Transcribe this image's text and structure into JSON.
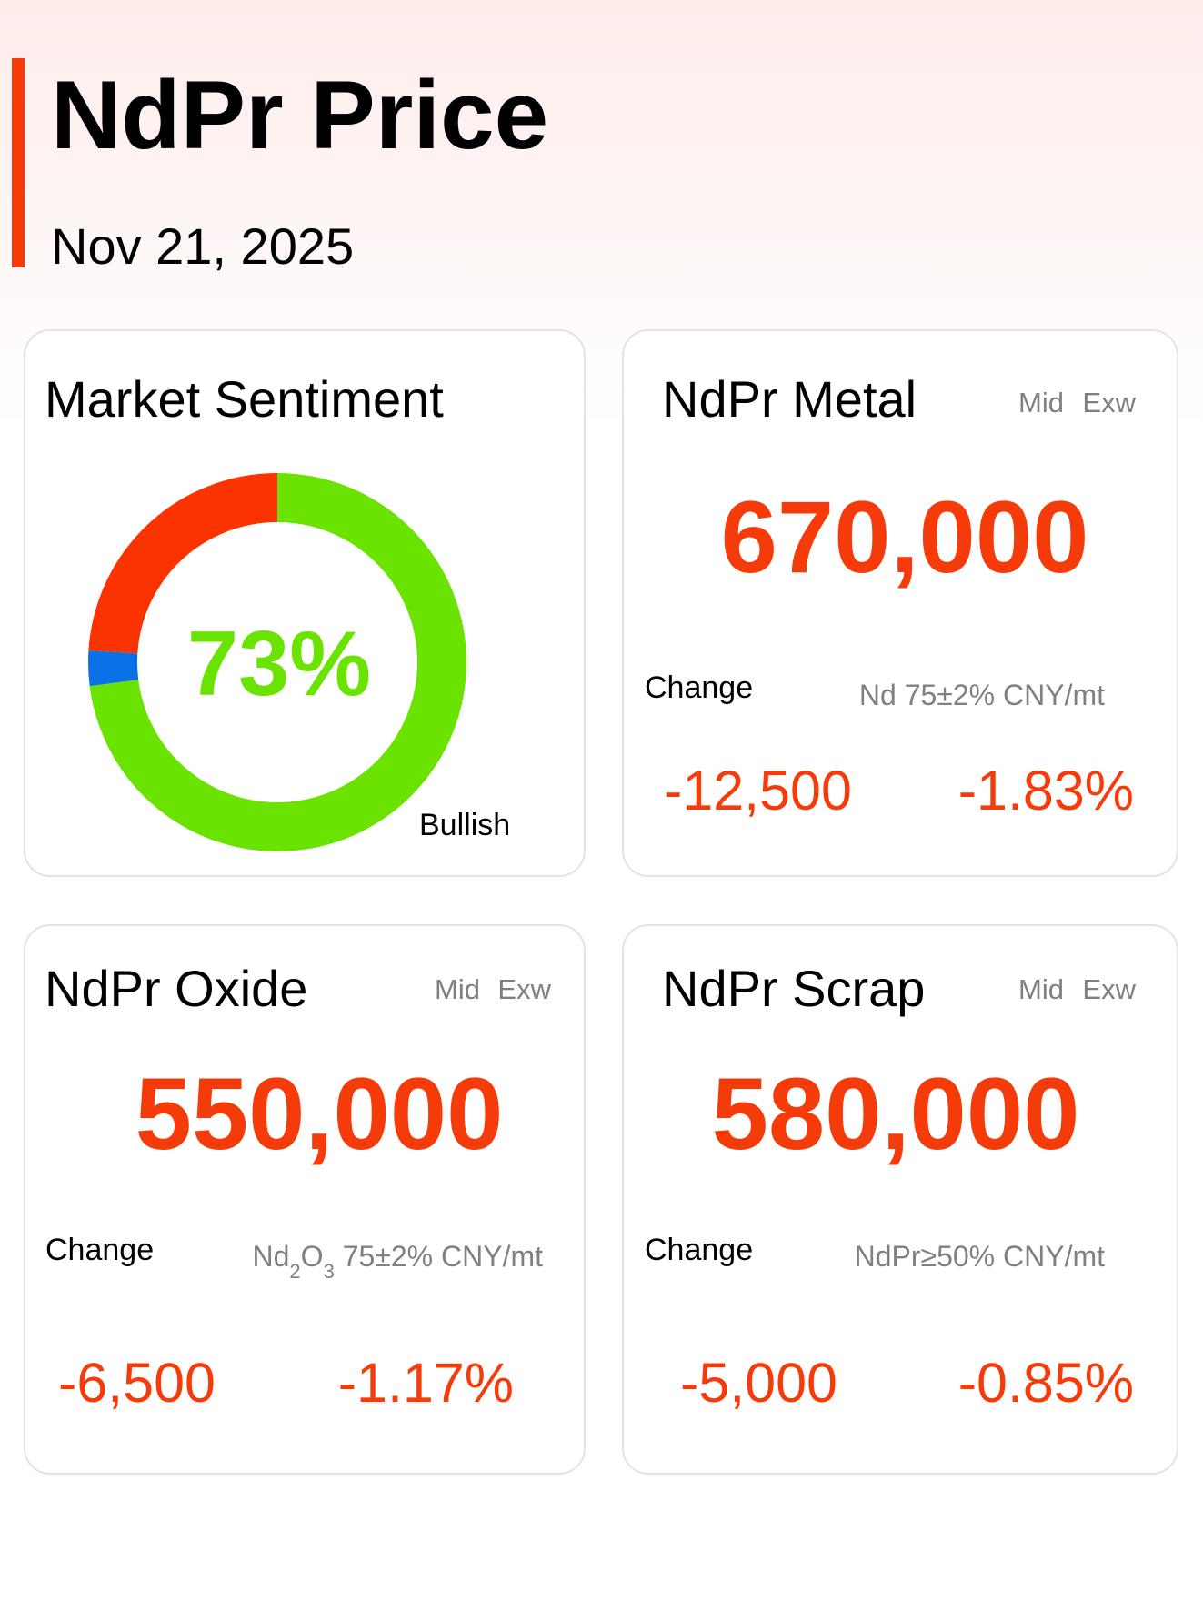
{
  "header": {
    "title": "NdPr Price",
    "date": "Nov 21, 2025"
  },
  "sentiment": {
    "title": "Market Sentiment",
    "center_label": "73%",
    "label": "Bullish",
    "segments": [
      {
        "value": 73,
        "color": "#6ae300"
      },
      {
        "value": 3,
        "color": "#0a72e6"
      },
      {
        "value": 24,
        "color": "#fa3300"
      }
    ]
  },
  "cards": [
    {
      "title": "NdPr Metal",
      "tags": [
        "Mid",
        "Exw"
      ],
      "price": "670,000",
      "change_label": "Change",
      "spec": [
        {
          "text": "Nd 75±2% CNY/mt"
        }
      ],
      "change": "-12,500",
      "change_pct": "-1.83%"
    },
    {
      "title": "NdPr Oxide",
      "tags": [
        "Mid",
        "Exw"
      ],
      "price": "550,000",
      "change_label": "Change",
      "spec": [
        {
          "text": "Nd"
        },
        {
          "text": "2",
          "sub": true
        },
        {
          "text": "O"
        },
        {
          "text": "3",
          "sub": true
        },
        {
          "text": " 75±2% CNY/mt"
        }
      ],
      "change": "-6,500",
      "change_pct": "-1.17%"
    },
    {
      "title": "NdPr Scrap",
      "tags": [
        "Mid",
        "Exw"
      ],
      "price": "580,000",
      "change_label": "Change",
      "spec": [
        {
          "text": "NdPr≥50% CNY/mt"
        }
      ],
      "change": "-5,000",
      "change_pct": "-0.85%"
    }
  ]
}
